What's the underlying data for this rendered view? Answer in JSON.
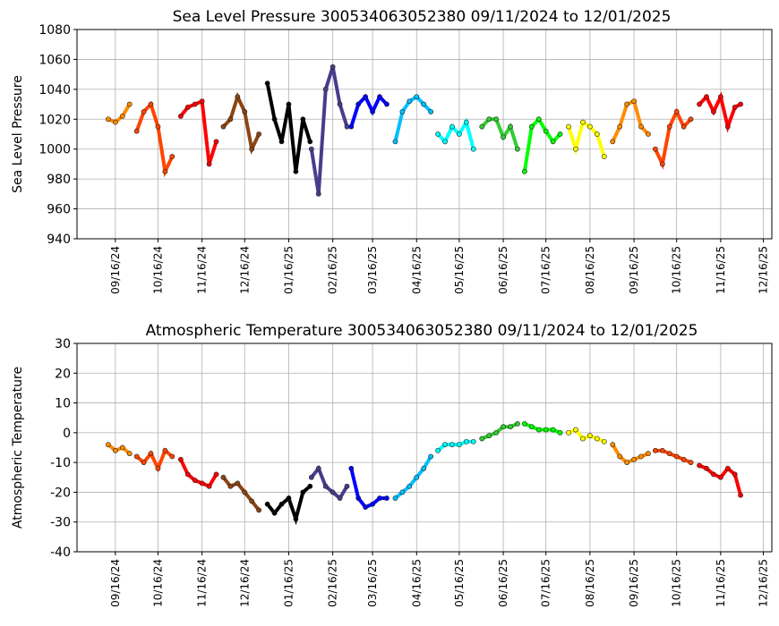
{
  "chart_data": [
    {
      "type": "line",
      "title": "Sea Level Pressure 300534063052380  09/11/2024 to 12/01/2025",
      "ylabel": "Sea Level Pressure",
      "xlim": [
        "08/20/24",
        "12/22/25"
      ],
      "xticks": [
        "09/16/24",
        "10/16/24",
        "11/16/24",
        "12/16/24",
        "01/16/25",
        "02/16/25",
        "03/16/25",
        "04/16/25",
        "05/16/25",
        "06/16/25",
        "07/16/25",
        "08/16/25",
        "09/16/25",
        "10/16/25",
        "11/16/25",
        "12/16/25"
      ],
      "ylim": [
        940,
        1080
      ],
      "yticks": [
        940,
        960,
        980,
        1000,
        1020,
        1040,
        1060,
        1080
      ],
      "grid": true,
      "series": [
        {
          "color": "#ff8c00",
          "x": [
            "09/11/24",
            "09/16/24",
            "09/21/24",
            "09/26/24"
          ],
          "values": [
            1020,
            1018,
            1022,
            1030
          ]
        },
        {
          "color": "#ff4500",
          "x": [
            "10/01/24",
            "10/06/24",
            "10/11/24",
            "10/16/24",
            "10/21/24",
            "10/26/24"
          ],
          "values": [
            1012,
            1025,
            1030,
            1015,
            985,
            995
          ]
        },
        {
          "color": "#ff0000",
          "x": [
            "11/01/24",
            "11/06/24",
            "11/11/24",
            "11/16/24",
            "11/21/24",
            "11/26/24"
          ],
          "values": [
            1022,
            1028,
            1030,
            1032,
            990,
            1005
          ]
        },
        {
          "color": "#8b4513",
          "x": [
            "12/01/24",
            "12/06/24",
            "12/11/24",
            "12/16/24",
            "12/21/24",
            "12/26/24"
          ],
          "values": [
            1015,
            1020,
            1035,
            1025,
            1000,
            1010
          ]
        },
        {
          "color": "#000000",
          "x": [
            "01/01/25",
            "01/06/25",
            "01/11/25",
            "01/16/25",
            "01/21/25",
            "01/26/25",
            "01/31/25"
          ],
          "values": [
            1044,
            1020,
            1005,
            1030,
            985,
            1020,
            1005
          ]
        },
        {
          "color": "#483d8b",
          "x": [
            "02/01/25",
            "02/06/25",
            "02/11/25",
            "02/16/25",
            "02/21/25",
            "02/26/25"
          ],
          "values": [
            1000,
            970,
            1040,
            1055,
            1030,
            1015
          ]
        },
        {
          "color": "#0000ff",
          "x": [
            "03/01/25",
            "03/06/25",
            "03/11/25",
            "03/16/25",
            "03/21/25",
            "03/26/25"
          ],
          "values": [
            1015,
            1030,
            1035,
            1025,
            1035,
            1030
          ]
        },
        {
          "color": "#00bfff",
          "x": [
            "04/01/25",
            "04/06/25",
            "04/11/25",
            "04/16/25",
            "04/21/25",
            "04/26/25"
          ],
          "values": [
            1005,
            1025,
            1032,
            1035,
            1030,
            1025
          ]
        },
        {
          "color": "#00ffff",
          "x": [
            "05/01/25",
            "05/06/25",
            "05/11/25",
            "05/16/25",
            "05/21/25",
            "05/26/25"
          ],
          "values": [
            1010,
            1005,
            1015,
            1010,
            1018,
            1000
          ]
        },
        {
          "color": "#32cd32",
          "x": [
            "06/01/25",
            "06/06/25",
            "06/11/25",
            "06/16/25",
            "06/21/25",
            "06/26/25"
          ],
          "values": [
            1015,
            1020,
            1020,
            1008,
            1015,
            1000
          ]
        },
        {
          "color": "#00ff00",
          "x": [
            "07/01/25",
            "07/06/25",
            "07/11/25",
            "07/16/25",
            "07/21/25",
            "07/26/25"
          ],
          "values": [
            985,
            1015,
            1020,
            1012,
            1005,
            1010
          ]
        },
        {
          "color": "#ffff00",
          "x": [
            "08/01/25",
            "08/06/25",
            "08/11/25",
            "08/16/25",
            "08/21/25",
            "08/26/25"
          ],
          "values": [
            1015,
            1000,
            1018,
            1015,
            1010,
            995
          ]
        },
        {
          "color": "#ff8c00",
          "x": [
            "09/01/25",
            "09/06/25",
            "09/11/25",
            "09/16/25",
            "09/21/25",
            "09/26/25"
          ],
          "values": [
            1005,
            1015,
            1030,
            1032,
            1015,
            1010
          ]
        },
        {
          "color": "#ff4500",
          "x": [
            "10/01/25",
            "10/06/25",
            "10/11/25",
            "10/16/25",
            "10/21/25",
            "10/26/25"
          ],
          "values": [
            1000,
            990,
            1015,
            1025,
            1015,
            1020
          ]
        },
        {
          "color": "#ff0000",
          "x": [
            "11/01/25",
            "11/06/25",
            "11/11/25",
            "11/16/25",
            "11/21/25",
            "11/26/25",
            "11/30/25"
          ],
          "values": [
            1030,
            1035,
            1025,
            1035,
            1015,
            1028,
            1030
          ]
        }
      ]
    },
    {
      "type": "line",
      "title": "Atmospheric Temperature 300534063052380  09/11/2024 to 12/01/2025",
      "ylabel": "Atmospheric Temperature",
      "xlim": [
        "08/20/24",
        "12/22/25"
      ],
      "xticks": [
        "09/16/24",
        "10/16/24",
        "11/16/24",
        "12/16/24",
        "01/16/25",
        "02/16/25",
        "03/16/25",
        "04/16/25",
        "05/16/25",
        "06/16/25",
        "07/16/25",
        "08/16/25",
        "09/16/25",
        "10/16/25",
        "11/16/25",
        "12/16/25"
      ],
      "ylim": [
        -40,
        30
      ],
      "yticks": [
        -40,
        -30,
        -20,
        -10,
        0,
        10,
        20,
        30
      ],
      "grid": true,
      "series": [
        {
          "color": "#ff8c00",
          "x": [
            "09/11/24",
            "09/16/24",
            "09/21/24",
            "09/26/24"
          ],
          "values": [
            -4,
            -6,
            -5,
            -7
          ]
        },
        {
          "color": "#ff4500",
          "x": [
            "10/01/24",
            "10/06/24",
            "10/11/24",
            "10/16/24",
            "10/21/24",
            "10/26/24"
          ],
          "values": [
            -8,
            -10,
            -7,
            -12,
            -6,
            -8
          ]
        },
        {
          "color": "#ff0000",
          "x": [
            "11/01/24",
            "11/06/24",
            "11/11/24",
            "11/16/24",
            "11/21/24",
            "11/26/24"
          ],
          "values": [
            -9,
            -14,
            -16,
            -17,
            -18,
            -14
          ]
        },
        {
          "color": "#8b4513",
          "x": [
            "12/01/24",
            "12/06/24",
            "12/11/24",
            "12/16/24",
            "12/21/24",
            "12/26/24"
          ],
          "values": [
            -15,
            -18,
            -17,
            -20,
            -23,
            -26
          ]
        },
        {
          "color": "#000000",
          "x": [
            "01/01/25",
            "01/06/25",
            "01/11/25",
            "01/16/25",
            "01/21/25",
            "01/26/25",
            "01/31/25"
          ],
          "values": [
            -24,
            -27,
            -24,
            -22,
            -29,
            -20,
            -18
          ]
        },
        {
          "color": "#483d8b",
          "x": [
            "02/01/25",
            "02/06/25",
            "02/11/25",
            "02/16/25",
            "02/21/25",
            "02/26/25"
          ],
          "values": [
            -15,
            -12,
            -18,
            -20,
            -22,
            -18
          ]
        },
        {
          "color": "#0000ff",
          "x": [
            "03/01/25",
            "03/06/25",
            "03/11/25",
            "03/16/25",
            "03/21/25",
            "03/26/25"
          ],
          "values": [
            -12,
            -22,
            -25,
            -24,
            -22,
            -22
          ]
        },
        {
          "color": "#00bfff",
          "x": [
            "04/01/25",
            "04/06/25",
            "04/11/25",
            "04/16/25",
            "04/21/25",
            "04/26/25"
          ],
          "values": [
            -22,
            -20,
            -18,
            -15,
            -12,
            -8
          ]
        },
        {
          "color": "#00ffff",
          "x": [
            "05/01/25",
            "05/06/25",
            "05/11/25",
            "05/16/25",
            "05/21/25",
            "05/26/25"
          ],
          "values": [
            -6,
            -4,
            -4,
            -4,
            -3,
            -3
          ]
        },
        {
          "color": "#32cd32",
          "x": [
            "06/01/25",
            "06/06/25",
            "06/11/25",
            "06/16/25",
            "06/21/25",
            "06/26/25"
          ],
          "values": [
            -2,
            -1,
            0,
            2,
            2,
            3
          ]
        },
        {
          "color": "#00ff00",
          "x": [
            "07/01/25",
            "07/06/25",
            "07/11/25",
            "07/16/25",
            "07/21/25",
            "07/26/25"
          ],
          "values": [
            3,
            2,
            1,
            1,
            1,
            0
          ]
        },
        {
          "color": "#ffff00",
          "x": [
            "08/01/25",
            "08/06/25",
            "08/11/25",
            "08/16/25",
            "08/21/25",
            "08/26/25"
          ],
          "values": [
            0,
            1,
            -2,
            -1,
            -2,
            -3
          ]
        },
        {
          "color": "#ff8c00",
          "x": [
            "09/01/25",
            "09/06/25",
            "09/11/25",
            "09/16/25",
            "09/21/25",
            "09/26/25"
          ],
          "values": [
            -4,
            -8,
            -10,
            -9,
            -8,
            -7
          ]
        },
        {
          "color": "#ff4500",
          "x": [
            "10/01/25",
            "10/06/25",
            "10/11/25",
            "10/16/25",
            "10/21/25",
            "10/26/25"
          ],
          "values": [
            -6,
            -6,
            -7,
            -8,
            -9,
            -10
          ]
        },
        {
          "color": "#ff0000",
          "x": [
            "11/01/25",
            "11/06/25",
            "11/11/25",
            "11/16/25",
            "11/21/25",
            "11/26/25",
            "11/30/25"
          ],
          "values": [
            -11,
            -12,
            -14,
            -15,
            -12,
            -14,
            -21
          ]
        }
      ]
    }
  ]
}
